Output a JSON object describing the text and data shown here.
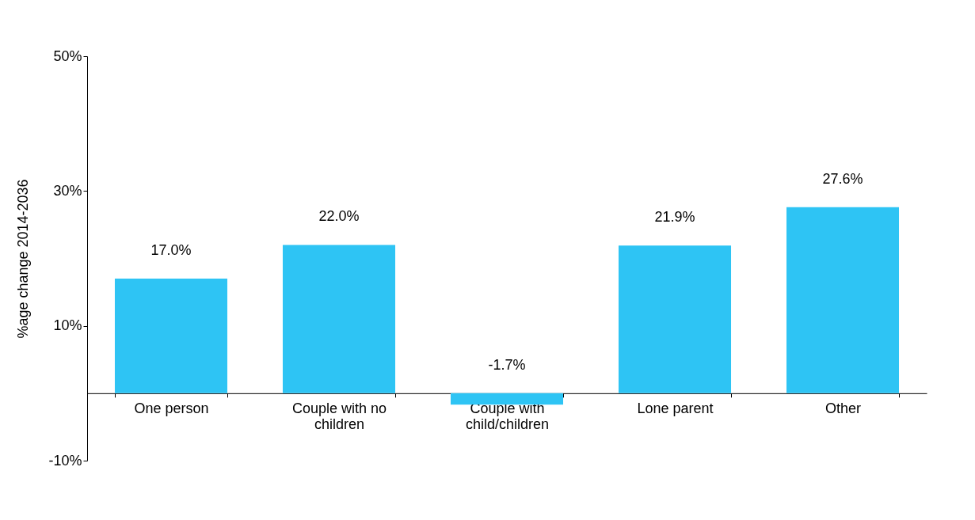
{
  "chart_data": {
    "type": "bar",
    "ylabel": "%age change 2014-2036",
    "categories": [
      "One person",
      "Couple with no children",
      "Couple with child/children",
      "Lone parent",
      "Other"
    ],
    "values": [
      17.0,
      22.0,
      -1.7,
      21.9,
      27.6
    ],
    "value_labels": [
      "17.0%",
      "22.0%",
      "-1.7%",
      "21.9%",
      "27.6%"
    ],
    "color": "#2ec4f4",
    "ylim": [
      -10,
      50
    ],
    "yticks": [
      {
        "value": -10,
        "label": "-10%"
      },
      {
        "value": 10,
        "label": "10%"
      },
      {
        "value": 30,
        "label": "30%"
      },
      {
        "value": 50,
        "label": "50%"
      }
    ],
    "grid": false
  }
}
